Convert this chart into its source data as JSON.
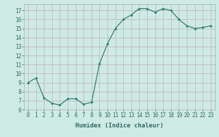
{
  "x": [
    0,
    1,
    2,
    3,
    4,
    5,
    6,
    7,
    8,
    9,
    10,
    11,
    12,
    13,
    14,
    15,
    16,
    17,
    18,
    19,
    20,
    21,
    22,
    23
  ],
  "y": [
    9.0,
    9.5,
    7.3,
    6.7,
    6.5,
    7.2,
    7.2,
    6.6,
    6.8,
    11.1,
    13.3,
    15.0,
    16.0,
    16.5,
    17.2,
    17.2,
    16.8,
    17.2,
    17.0,
    16.0,
    15.3,
    15.0,
    15.1,
    15.3
  ],
  "line_color": "#2e7d72",
  "marker": "D",
  "marker_size": 1.8,
  "bg_color": "#ceeae5",
  "grid_color_v": "#c4b8b8",
  "grid_color_h": "#c4b8b8",
  "xlabel": "Humidex (Indice chaleur)",
  "xlim": [
    -0.5,
    23.5
  ],
  "ylim": [
    6,
    17.7
  ],
  "yticks": [
    6,
    7,
    8,
    9,
    10,
    11,
    12,
    13,
    14,
    15,
    16,
    17
  ],
  "xticks": [
    0,
    1,
    2,
    3,
    4,
    5,
    6,
    7,
    8,
    9,
    10,
    11,
    12,
    13,
    14,
    15,
    16,
    17,
    18,
    19,
    20,
    21,
    22,
    23
  ],
  "tick_label_size": 5.5,
  "xlabel_size": 6.5,
  "axis_color": "#2e6b60"
}
